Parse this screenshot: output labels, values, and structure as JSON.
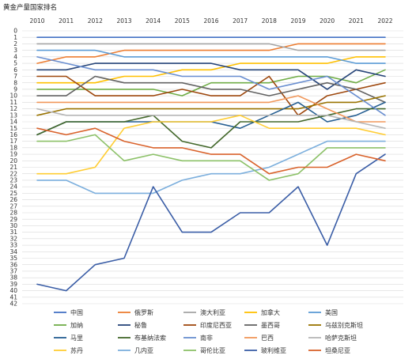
{
  "chart_data": {
    "type": "line",
    "title": "黄金产量国家排名",
    "xlabel": "",
    "ylabel": "",
    "x": [
      2010,
      2011,
      2012,
      2013,
      2014,
      2015,
      2016,
      2017,
      2018,
      2019,
      2020,
      2021,
      2022
    ],
    "ylim": [
      0,
      42
    ],
    "y_inverted": true,
    "grid": "horizontal",
    "x_axis_position": "top",
    "legend_position": "bottom",
    "series": [
      {
        "name": "中国",
        "color": "#4472c4",
        "values": [
          1,
          1,
          1,
          1,
          1,
          1,
          1,
          1,
          1,
          1,
          1,
          1,
          1
        ]
      },
      {
        "name": "俄罗斯",
        "color": "#ed7d31",
        "values": [
          5,
          4,
          4,
          3,
          3,
          3,
          3,
          3,
          3,
          2,
          2,
          2,
          2
        ]
      },
      {
        "name": "澳大利亚",
        "color": "#a5a5a5",
        "values": [
          2,
          2,
          2,
          2,
          2,
          2,
          2,
          2,
          2,
          3,
          3,
          3,
          3
        ]
      },
      {
        "name": "加拿大",
        "color": "#ffc000",
        "values": [
          8,
          8,
          8,
          7,
          7,
          6,
          6,
          5,
          5,
          5,
          5,
          4,
          4
        ]
      },
      {
        "name": "美国",
        "color": "#5b9bd5",
        "values": [
          3,
          3,
          3,
          4,
          4,
          4,
          4,
          4,
          4,
          4,
          4,
          5,
          5
        ]
      },
      {
        "name": "加纳",
        "color": "#70ad47",
        "values": [
          9,
          9,
          9,
          9,
          9,
          10,
          8,
          8,
          8,
          7,
          7,
          8,
          6
        ]
      },
      {
        "name": "秘鲁",
        "color": "#264478",
        "values": [
          6,
          6,
          5,
          5,
          5,
          5,
          5,
          6,
          6,
          6,
          9,
          6,
          7
        ]
      },
      {
        "name": "印度尼西亚",
        "color": "#9e480e",
        "values": [
          7,
          7,
          10,
          10,
          10,
          9,
          10,
          10,
          7,
          13,
          10,
          9,
          8
        ]
      },
      {
        "name": "墨西哥",
        "color": "#636363",
        "values": [
          10,
          10,
          7,
          8,
          8,
          8,
          9,
          9,
          10,
          9,
          8,
          9,
          11
        ]
      },
      {
        "name": "乌兹别克斯坦",
        "color": "#997300",
        "values": [
          13,
          12,
          12,
          12,
          12,
          12,
          12,
          12,
          12,
          12,
          11,
          11,
          10
        ]
      },
      {
        "name": "马里",
        "color": "#255e91",
        "values": [
          16,
          14,
          14,
          14,
          14,
          14,
          14,
          15,
          13,
          11,
          14,
          13,
          11
        ]
      },
      {
        "name": "布基纳法索",
        "color": "#43682b",
        "values": [
          16,
          14,
          14,
          14,
          13,
          17,
          18,
          14,
          14,
          14,
          13,
          12,
          12
        ]
      },
      {
        "name": "南非",
        "color": "#698ed0",
        "values": [
          4,
          5,
          6,
          6,
          6,
          7,
          7,
          7,
          9,
          8,
          7,
          10,
          13
        ]
      },
      {
        "name": "巴西",
        "color": "#f1975a",
        "values": [
          11,
          11,
          11,
          11,
          11,
          11,
          11,
          11,
          11,
          10,
          12,
          14,
          14
        ]
      },
      {
        "name": "哈萨克斯坦",
        "color": "#b7b7b7",
        "values": [
          12,
          13,
          13,
          13,
          13,
          13,
          13,
          13,
          13,
          13,
          13,
          14,
          15
        ]
      },
      {
        "name": "苏丹",
        "color": "#ffcd33",
        "values": [
          22,
          22,
          21,
          15,
          14,
          14,
          14,
          13,
          15,
          15,
          15,
          15,
          16
        ]
      },
      {
        "name": "几内亚",
        "color": "#7cafdd",
        "values": [
          23,
          23,
          25,
          25,
          25,
          23,
          22,
          22,
          21,
          19,
          17,
          17,
          17
        ]
      },
      {
        "name": "哥伦比亚",
        "color": "#8cc168",
        "values": [
          17,
          17,
          16,
          20,
          19,
          20,
          20,
          20,
          23,
          22,
          18,
          18,
          18
        ]
      },
      {
        "name": "玻利维亚",
        "color": "#3a5da6",
        "values": [
          39,
          40,
          36,
          35,
          24,
          31,
          31,
          28,
          28,
          24,
          33,
          22,
          19
        ]
      },
      {
        "name": "坦桑尼亚",
        "color": "#d9622b",
        "values": [
          15,
          16,
          15,
          17,
          18,
          18,
          19,
          19,
          22,
          21,
          21,
          19,
          20
        ]
      }
    ]
  }
}
